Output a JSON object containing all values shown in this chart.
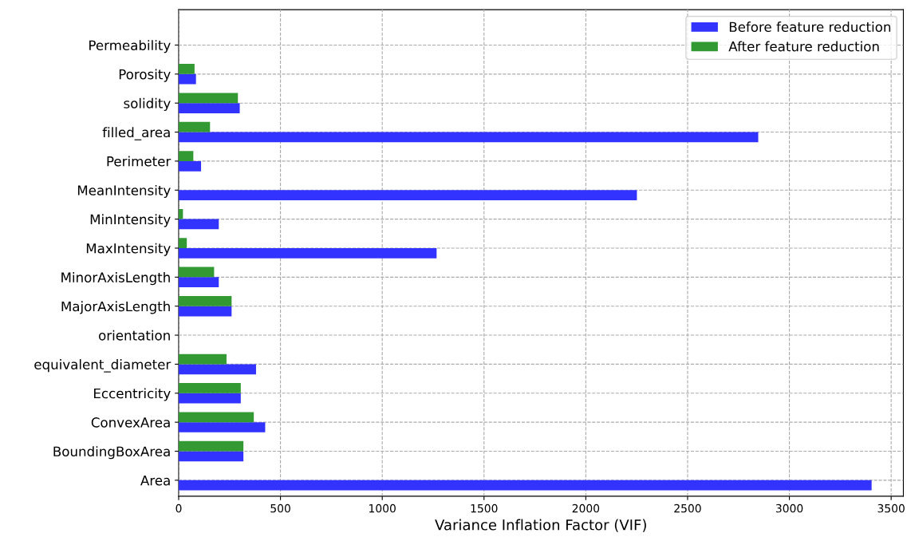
{
  "chart_data": {
    "type": "bar",
    "orientation": "horizontal",
    "xlabel": "Variance Inflation Factor (VIF)",
    "categories": [
      "Permeability",
      "Porosity",
      "solidity",
      "filled_area",
      "Perimeter",
      "MeanIntensity",
      "MinIntensity",
      "MaxIntensity",
      "MinorAxisLength",
      "MajorAxisLength",
      "orientation",
      "equivalent_diameter",
      "Eccentricity",
      "ConvexArea",
      "BoundingBoxArea",
      "Area"
    ],
    "series": [
      {
        "name": "Before feature reduction",
        "color": "#3333ff",
        "values": [
          null,
          85,
          300,
          2847,
          110,
          2251,
          197,
          1267,
          197,
          260,
          null,
          380,
          305,
          425,
          318,
          3404
        ]
      },
      {
        "name": "After feature reduction",
        "color": "#339933",
        "values": [
          null,
          78,
          291,
          154,
          72,
          null,
          21,
          40,
          174,
          260,
          null,
          235,
          305,
          369,
          318,
          null
        ]
      }
    ],
    "xlim": [
      0,
      3560
    ],
    "xticks": [
      0,
      500,
      1000,
      1500,
      2000,
      2500,
      3000,
      3500
    ],
    "grid": true,
    "legend": "top right"
  }
}
